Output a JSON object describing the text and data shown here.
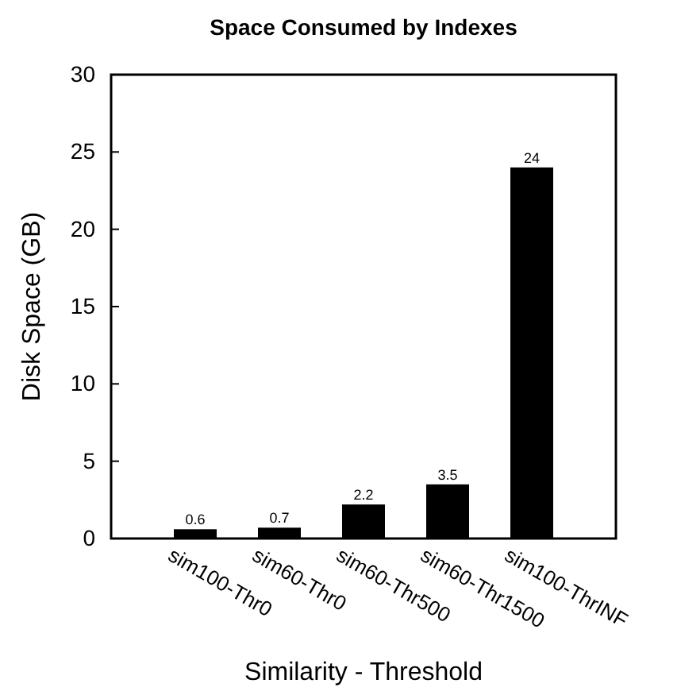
{
  "chart_data": {
    "type": "bar",
    "title": "Space Consumed by Indexes",
    "xlabel": "Similarity - Threshold",
    "ylabel": "Disk Space (GB)",
    "categories": [
      "sim100-Thr0",
      "sim60-Thr0",
      "sim60-Thr500",
      "sim60-Thr1500",
      "sim100-ThrINF"
    ],
    "values": [
      0.6,
      0.7,
      2.2,
      3.5,
      24
    ],
    "color": "#000000",
    "ylim": [
      0,
      30
    ],
    "yticks": [
      0,
      5,
      10,
      15,
      20,
      25,
      30
    ],
    "grid": false,
    "data_labels": true
  }
}
